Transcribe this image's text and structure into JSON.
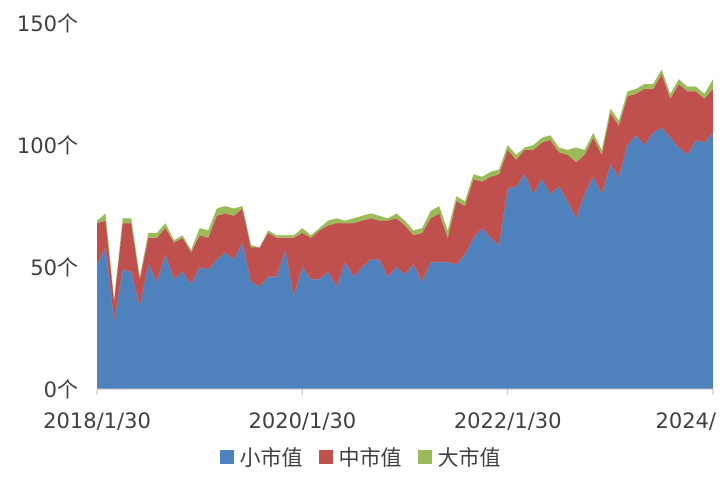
{
  "chart_data": {
    "type": "area",
    "stacked": true,
    "title": "",
    "xlabel": "",
    "ylabel": "",
    "ylim": [
      0,
      150
    ],
    "x_ticks": [
      "2018/1/30",
      "2020/1/30",
      "2022/1/30",
      "2024/"
    ],
    "y_ticks": [
      "0个",
      "50个",
      "100个",
      "150个"
    ],
    "grid": false,
    "legend_position": "bottom",
    "x_start": "2018-01",
    "x_end": "2024-05",
    "series": [
      {
        "name": "小市值",
        "color": "#4F81BD",
        "values": [
          51,
          58,
          28,
          49,
          48,
          34,
          51,
          44,
          55,
          45,
          48,
          43,
          50,
          49,
          53,
          56,
          53,
          60,
          44,
          42,
          46,
          46,
          57,
          38,
          50,
          45,
          45,
          48,
          42,
          52,
          46,
          50,
          53,
          53,
          46,
          50,
          47,
          51,
          44,
          52,
          52,
          52,
          51,
          55,
          62,
          66,
          62,
          59,
          82,
          83,
          88,
          80,
          86,
          80,
          83,
          77,
          70,
          80,
          87,
          80,
          92,
          87,
          100,
          104,
          100,
          105,
          107,
          103,
          99,
          96,
          102,
          101,
          105
        ]
      },
      {
        "name": "中市值",
        "color": "#C0504D",
        "values": [
          17,
          11,
          8,
          19,
          20,
          11,
          11,
          18,
          11,
          15,
          14,
          13,
          13,
          13,
          18,
          16,
          18,
          14,
          14,
          16,
          18,
          16,
          5,
          24,
          14,
          17,
          20,
          19,
          26,
          16,
          22,
          19,
          17,
          16,
          23,
          20,
          20,
          12,
          20,
          18,
          20,
          10,
          26,
          20,
          24,
          19,
          25,
          29,
          16,
          11,
          10,
          18,
          15,
          22,
          14,
          19,
          23,
          16,
          16,
          16,
          21,
          21,
          20,
          17,
          23,
          18,
          22,
          16,
          26,
          26,
          20,
          18,
          18
        ]
      },
      {
        "name": "大市值",
        "color": "#9BBB59",
        "values": [
          1,
          3,
          1,
          2,
          2,
          1,
          2,
          2,
          2,
          1,
          1,
          1,
          3,
          3,
          3,
          3,
          3,
          1,
          1,
          0,
          1,
          1,
          1,
          1,
          2,
          1,
          1,
          2,
          2,
          1,
          2,
          2,
          2,
          2,
          1,
          2,
          2,
          2,
          2,
          3,
          3,
          3,
          2,
          2,
          2,
          2,
          2,
          2,
          2,
          2,
          1,
          2,
          2,
          2,
          2,
          2,
          6,
          2,
          2,
          2,
          2,
          2,
          2,
          2,
          2,
          2,
          2,
          2,
          2,
          2,
          2,
          2,
          4
        ]
      }
    ]
  }
}
